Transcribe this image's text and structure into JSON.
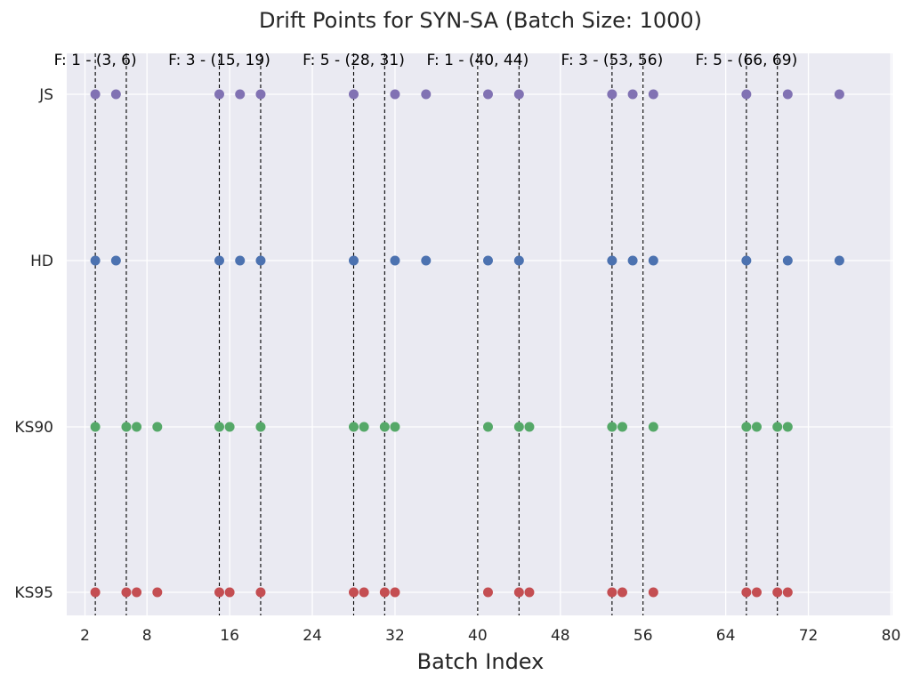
{
  "chart_data": {
    "type": "scatter",
    "title": "Drift Points for SYN-SA (Batch Size: 1000)",
    "xlabel": "Batch Index",
    "ylabel": "",
    "xlim": [
      1,
      80
    ],
    "xticks": [
      2,
      8,
      16,
      24,
      32,
      40,
      48,
      56,
      64,
      72,
      80
    ],
    "categories": [
      "KS95",
      "KS90",
      "HD",
      "JS"
    ],
    "grid": true,
    "background": "#eaeaf2",
    "series": [
      {
        "name": "JS",
        "color": "#8172b3",
        "x": [
          3,
          5,
          15,
          17,
          19,
          28,
          32,
          35,
          41,
          44,
          53,
          55,
          57,
          66,
          70,
          75
        ]
      },
      {
        "name": "HD",
        "color": "#4c72b0",
        "x": [
          3,
          5,
          15,
          17,
          19,
          28,
          32,
          35,
          41,
          44,
          53,
          55,
          57,
          66,
          70,
          75
        ]
      },
      {
        "name": "KS90",
        "color": "#55a868",
        "x": [
          3,
          6,
          7,
          9,
          15,
          16,
          19,
          28,
          29,
          31,
          32,
          41,
          44,
          45,
          53,
          54,
          57,
          66,
          67,
          69,
          70
        ]
      },
      {
        "name": "KS95",
        "color": "#c44e52",
        "x": [
          3,
          6,
          7,
          9,
          15,
          16,
          19,
          28,
          29,
          31,
          32,
          41,
          44,
          45,
          53,
          54,
          57,
          66,
          67,
          69,
          70
        ]
      }
    ],
    "drift_lines": [
      3,
      6,
      15,
      19,
      28,
      31,
      40,
      44,
      53,
      56,
      66,
      69
    ],
    "annotations": [
      {
        "text": "F: 1 - (3, 6)",
        "x": 3
      },
      {
        "text": "F: 3 - (15, 19)",
        "x": 15
      },
      {
        "text": "F: 5 - (28, 31)",
        "x": 28
      },
      {
        "text": "F: 1 - (40, 44)",
        "x": 40
      },
      {
        "text": "F: 3 - (53, 56)",
        "x": 53
      },
      {
        "text": "F: 5 - (66, 69)",
        "x": 66
      }
    ]
  }
}
